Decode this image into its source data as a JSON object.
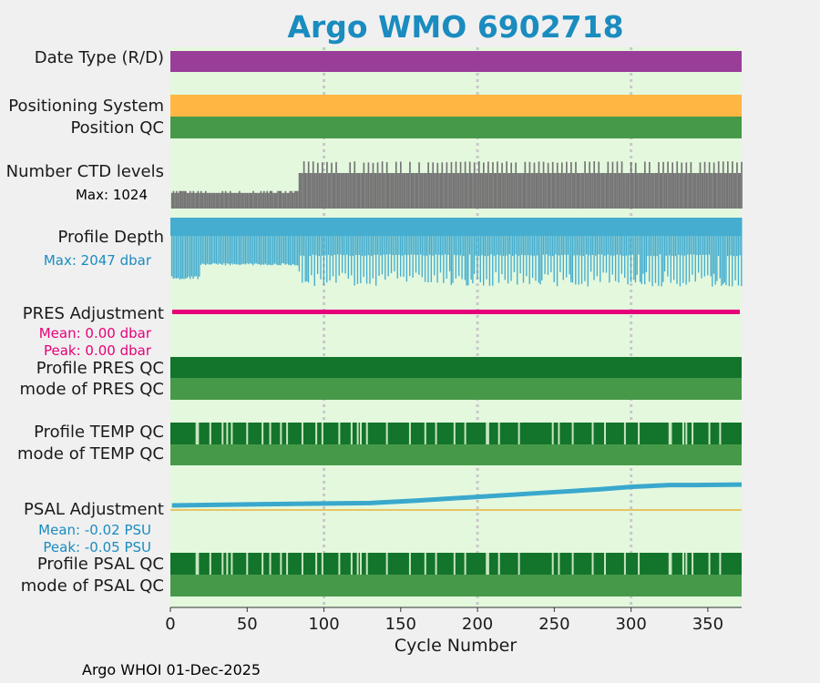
{
  "title": "Argo WMO 6902718",
  "footer": "Argo WHOI 01-Dec-2025",
  "colors": {
    "background": "#f0f0f0",
    "plot_bg": "#e4f8de",
    "title": "#1a8cbf",
    "date_type": "#993d99",
    "positioning": "#ffb642",
    "qc_light": "#47994a",
    "qc_dark": "#13742b",
    "qc_bad": "#c8e6c0",
    "ctd": "#757575",
    "depth": "#45adcf",
    "pres_adj": "#e6007a",
    "psal_adj": "#3aa8cc",
    "psal_ref": "#e8b43a",
    "grid": "#c8c8c8"
  },
  "chart_data": {
    "type": "timeline",
    "title": "Argo WMO 6902718",
    "xlabel": "Cycle Number",
    "xlim": [
      0,
      372
    ],
    "xticks": [
      0,
      50,
      100,
      150,
      200,
      250,
      300,
      350
    ],
    "grid_x": [
      100,
      200,
      300
    ],
    "rows": {
      "date_type": {
        "label": "Date Type (R/D)"
      },
      "positioning": {
        "label": "Positioning System"
      },
      "position_qc": {
        "label": "Position QC"
      },
      "ctd_levels": {
        "label": "Number CTD levels",
        "max_text": "Max: 1024",
        "max": 1024,
        "segments": [
          {
            "from": 1,
            "to": 83,
            "typical": 0.33,
            "max": 0.37
          },
          {
            "from": 84,
            "to": 372,
            "typical": 0.75,
            "max": 1.0
          }
        ]
      },
      "profile_depth": {
        "label": "Profile Depth",
        "max_text": "Max: 2047 dbar",
        "max": 2047,
        "segments": [
          {
            "from": 1,
            "to": 83,
            "typical": 1010,
            "shallow_min": 850
          },
          {
            "from": 84,
            "to": 372,
            "typical": 1000,
            "deep_park": 2047
          }
        ]
      },
      "pres_adjustment": {
        "label": "PRES Adjustment",
        "mean_text": "Mean: 0.00 dbar",
        "peak_text": "Peak: 0.00 dbar",
        "mean": 0.0,
        "peak": 0.0
      },
      "profile_pres_qc": {
        "label": "Profile PRES QC",
        "bad_cycles": []
      },
      "mode_pres_qc": {
        "label": "mode of PRES QC"
      },
      "profile_temp_qc": {
        "label": "Profile TEMP QC",
        "bad_cycles": [
          17,
          18,
          26,
          34,
          37,
          40,
          50,
          60,
          65,
          72,
          76,
          86,
          95,
          99,
          110,
          118,
          122,
          124,
          128,
          141,
          156,
          166,
          173,
          185,
          192,
          206,
          207,
          214,
          227,
          249,
          253,
          262,
          275,
          283,
          296,
          305,
          325,
          326,
          334,
          336,
          340,
          351,
          358
        ]
      },
      "mode_temp_qc": {
        "label": "mode of TEMP QC"
      },
      "psal_adjustment": {
        "label": "PSAL Adjustment",
        "mean_text": "Mean: -0.02 PSU",
        "peak_text": "Peak: -0.05 PSU",
        "mean": -0.02,
        "peak": -0.05,
        "x": [
          1,
          50,
          100,
          130,
          160,
          200,
          240,
          280,
          300,
          325,
          340,
          372
        ],
        "y": [
          -0.002,
          -0.004,
          -0.006,
          -0.007,
          -0.012,
          -0.02,
          -0.028,
          -0.036,
          -0.041,
          -0.045,
          -0.045,
          -0.046
        ]
      },
      "profile_psal_qc": {
        "label": "Profile PSAL QC",
        "bad_cycles": [
          17,
          18,
          26,
          34,
          37,
          40,
          50,
          60,
          65,
          72,
          76,
          86,
          95,
          99,
          110,
          118,
          122,
          124,
          128,
          141,
          156,
          166,
          173,
          185,
          192,
          206,
          207,
          214,
          227,
          249,
          253,
          262,
          275,
          283,
          296,
          305,
          325,
          326,
          334,
          336,
          340,
          351,
          358
        ]
      },
      "mode_psal_qc": {
        "label": "mode of PSAL QC"
      }
    }
  }
}
